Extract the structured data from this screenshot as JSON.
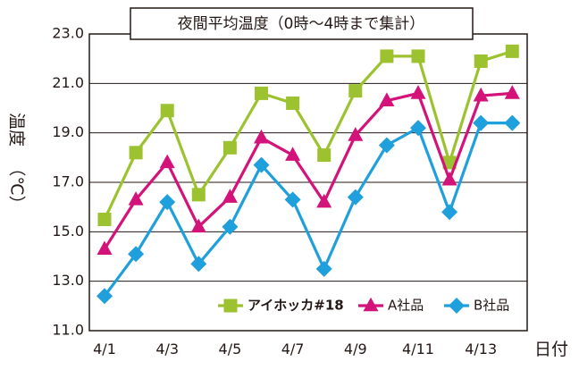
{
  "chart_data": {
    "type": "line",
    "title": "夜間平均温度（0時～4時まで集計）",
    "xlabel": "日付",
    "ylabel": "温度（℃）",
    "ylabel_main": "温度",
    "ylabel_unit": "（℃）",
    "ylim": [
      11.0,
      23.0
    ],
    "yticks": [
      "11.0",
      "13.0",
      "15.0",
      "17.0",
      "19.0",
      "21.0",
      "23.0"
    ],
    "yticks_values": [
      11,
      13,
      15,
      17,
      19,
      21,
      23
    ],
    "x": [
      "4/1",
      "4/2",
      "4/3",
      "4/4",
      "4/5",
      "4/6",
      "4/7",
      "4/8",
      "4/9",
      "4/10",
      "4/11",
      "4/12",
      "4/13",
      "4/14"
    ],
    "xtick_labels": [
      "4/1",
      "4/3",
      "4/5",
      "4/7",
      "4/9",
      "4/11",
      "4/13"
    ],
    "xtick_index": [
      0,
      2,
      4,
      6,
      8,
      10,
      12
    ],
    "grid": "horizontal",
    "legend_position": "bottom-right",
    "series": [
      {
        "name": "アイホッカ#18",
        "marker": "square",
        "color": "#9dc22f",
        "values": [
          15.5,
          18.2,
          19.9,
          16.5,
          18.4,
          20.6,
          20.2,
          18.1,
          20.7,
          22.1,
          22.1,
          17.8,
          21.9,
          22.3
        ]
      },
      {
        "name": "A社品",
        "marker": "triangle",
        "color": "#d4137a",
        "values": [
          14.3,
          16.3,
          17.8,
          15.2,
          16.4,
          18.8,
          18.1,
          16.2,
          18.9,
          20.3,
          20.6,
          17.1,
          20.5,
          20.6
        ]
      },
      {
        "name": "B社品",
        "marker": "diamond",
        "color": "#1f9fdc",
        "values": [
          12.4,
          14.1,
          16.2,
          13.7,
          15.2,
          17.7,
          16.3,
          13.5,
          16.4,
          18.5,
          19.2,
          15.8,
          19.4,
          19.4
        ]
      }
    ]
  }
}
